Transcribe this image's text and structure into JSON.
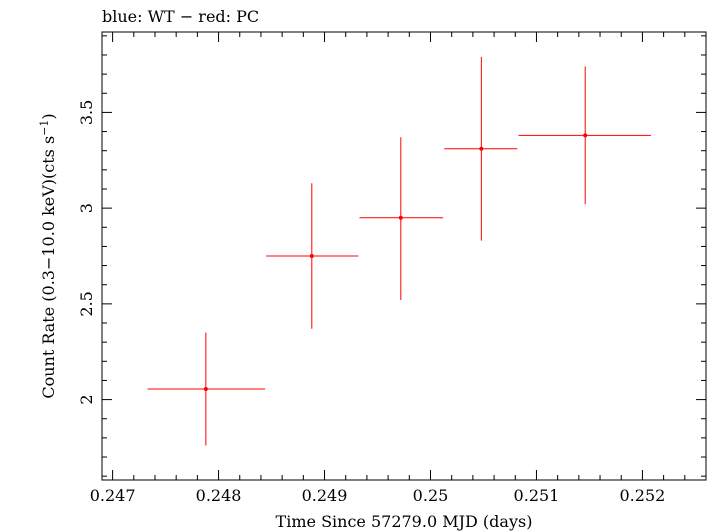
{
  "chart_data": {
    "type": "scatter",
    "title": "blue: WT − red: PC",
    "xlabel": "Time Since 57279.0 MJD (days)",
    "ylabel": "Count Rate (0.3−10.0 keV)(cts s",
    "ylabel_sup": "−1",
    "ylabel_end": ")",
    "xlim": [
      0.2469,
      0.2526
    ],
    "ylim": [
      1.58,
      3.92
    ],
    "x_ticks": [
      0.247,
      0.248,
      0.249,
      0.25,
      0.251,
      0.252
    ],
    "x_tick_labels": [
      "0.247",
      "0.248",
      "0.249",
      "0.25",
      "0.251",
      "0.252"
    ],
    "y_ticks": [
      2,
      2.5,
      3,
      3.5
    ],
    "y_tick_labels": [
      "2",
      "2.5",
      "3",
      "3.5"
    ],
    "series": [
      {
        "name": "PC",
        "color": "#ff0000",
        "points": [
          {
            "x": 0.24788,
            "y": 2.055,
            "xlo": 0.24733,
            "xhi": 0.24844,
            "ylo": 1.76,
            "yhi": 2.35
          },
          {
            "x": 0.24888,
            "y": 2.75,
            "xlo": 0.24845,
            "xhi": 0.24932,
            "ylo": 2.37,
            "yhi": 3.13
          },
          {
            "x": 0.24972,
            "y": 2.95,
            "xlo": 0.24933,
            "xhi": 0.25012,
            "ylo": 2.52,
            "yhi": 3.37
          },
          {
            "x": 0.25048,
            "y": 3.31,
            "xlo": 0.25013,
            "xhi": 0.25082,
            "ylo": 2.83,
            "yhi": 3.79
          },
          {
            "x": 0.25146,
            "y": 3.38,
            "xlo": 0.25083,
            "xhi": 0.25208,
            "ylo": 3.02,
            "yhi": 3.74
          }
        ]
      }
    ]
  }
}
